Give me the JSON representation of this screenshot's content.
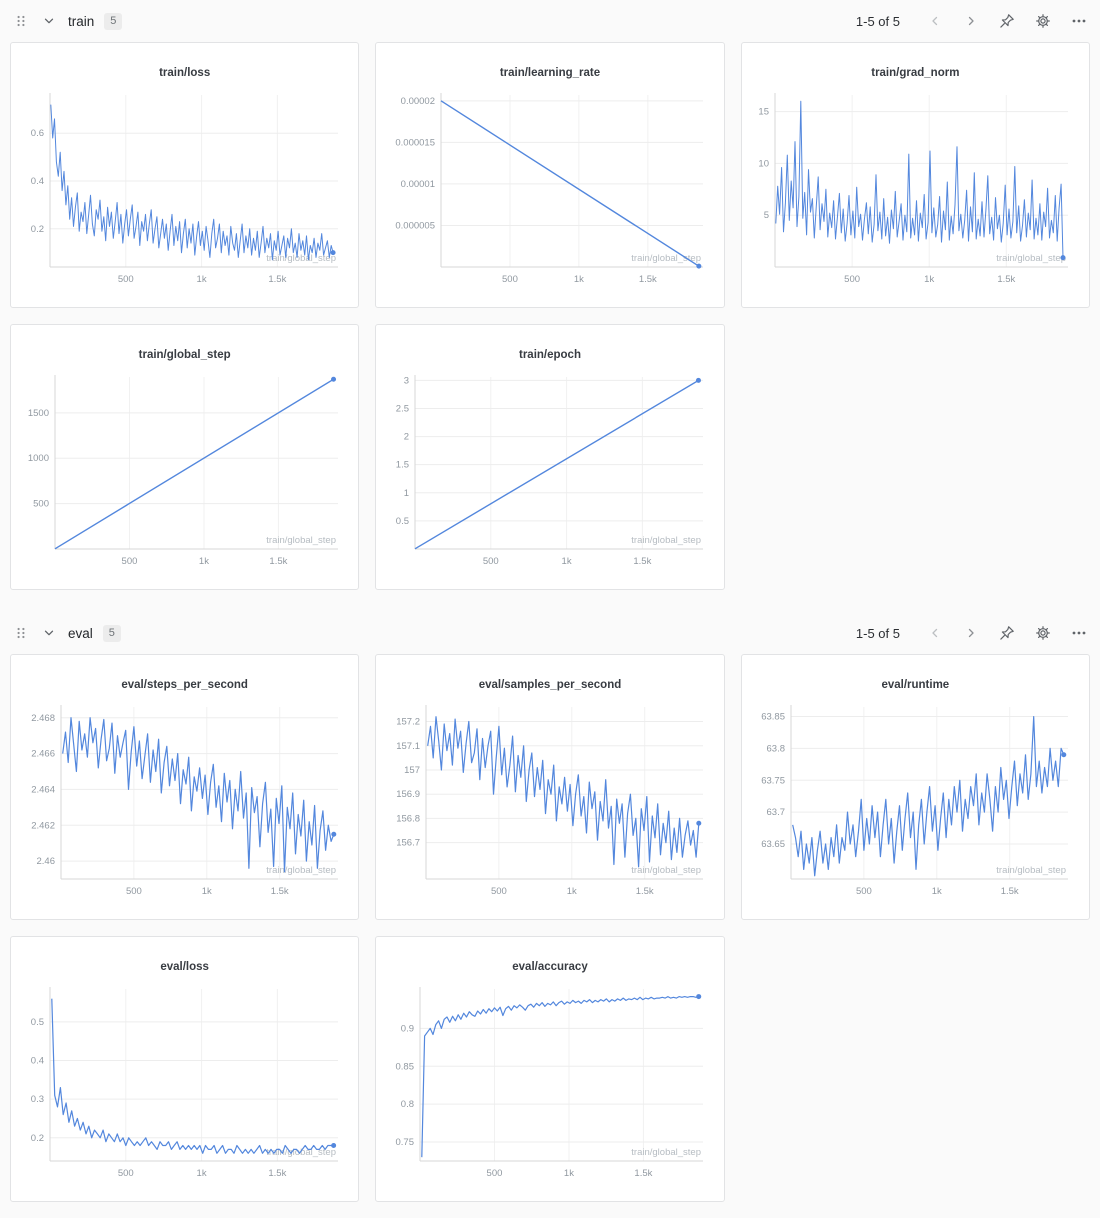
{
  "line_color": "#5387dd",
  "sections": [
    {
      "title": "train",
      "count": "5",
      "pagination": "1-5 of 5",
      "controls": [
        "drag-handle-icon",
        "chevron-down-icon",
        "chevron-left-icon",
        "chevron-right-icon",
        "pin-icon",
        "gear-icon",
        "ellipsis-icon"
      ]
    },
    {
      "title": "eval",
      "count": "5",
      "pagination": "1-5 of 5",
      "controls": [
        "drag-handle-icon",
        "chevron-down-icon",
        "chevron-left-icon",
        "chevron-right-icon",
        "pin-icon",
        "gear-icon",
        "ellipsis-icon"
      ]
    }
  ],
  "chart_data": [
    {
      "section": 0,
      "type": "line",
      "title": "train/loss",
      "xlabel": "train/global_step",
      "xlim": [
        0,
        1900
      ],
      "ylim": [
        0.04,
        0.76
      ],
      "x_ticks": [
        [
          500,
          "500"
        ],
        [
          1000,
          "1k"
        ],
        [
          1500,
          "1.5k"
        ]
      ],
      "y_ticks": [
        [
          0.2,
          "0.2"
        ],
        [
          0.4,
          "0.4"
        ],
        [
          0.6,
          "0.6"
        ]
      ],
      "x0": 5,
      "dx": 12.5,
      "stroke_width": 1,
      "y": [
        0.72,
        0.58,
        0.66,
        0.48,
        0.42,
        0.52,
        0.36,
        0.44,
        0.3,
        0.38,
        0.24,
        0.33,
        0.21,
        0.29,
        0.35,
        0.19,
        0.27,
        0.23,
        0.31,
        0.18,
        0.26,
        0.34,
        0.22,
        0.17,
        0.28,
        0.24,
        0.32,
        0.19,
        0.25,
        0.15,
        0.29,
        0.21,
        0.27,
        0.16,
        0.23,
        0.31,
        0.18,
        0.26,
        0.14,
        0.22,
        0.28,
        0.17,
        0.24,
        0.3,
        0.16,
        0.21,
        0.27,
        0.13,
        0.23,
        0.19,
        0.26,
        0.15,
        0.22,
        0.28,
        0.14,
        0.2,
        0.25,
        0.12,
        0.18,
        0.24,
        0.16,
        0.22,
        0.11,
        0.19,
        0.26,
        0.13,
        0.21,
        0.15,
        0.23,
        0.1,
        0.18,
        0.24,
        0.12,
        0.2,
        0.14,
        0.22,
        0.09,
        0.17,
        0.23,
        0.13,
        0.19,
        0.11,
        0.21,
        0.15,
        0.08,
        0.18,
        0.24,
        0.12,
        0.16,
        0.22,
        0.1,
        0.19,
        0.13,
        0.17,
        0.09,
        0.21,
        0.14,
        0.11,
        0.18,
        0.08,
        0.15,
        0.22,
        0.1,
        0.17,
        0.12,
        0.2,
        0.09,
        0.16,
        0.11,
        0.19,
        0.08,
        0.14,
        0.21,
        0.1,
        0.16,
        0.12,
        0.18,
        0.07,
        0.15,
        0.11,
        0.19,
        0.09,
        0.13,
        0.17,
        0.08,
        0.16,
        0.12,
        0.2,
        0.1,
        0.14,
        0.08,
        0.18,
        0.11,
        0.15,
        0.09,
        0.17,
        0.07,
        0.13,
        0.1,
        0.16,
        0.08,
        0.14,
        0.11,
        0.18,
        0.09,
        0.12,
        0.15,
        0.08,
        0.13,
        0.1
      ]
    },
    {
      "section": 0,
      "type": "line",
      "title": "train/learning_rate",
      "xlabel": "train/global_step",
      "xlim": [
        0,
        1900
      ],
      "ylim": [
        0,
        2.07e-05
      ],
      "x_ticks": [
        [
          500,
          "500"
        ],
        [
          1000,
          "1k"
        ],
        [
          1500,
          "1.5k"
        ]
      ],
      "y_ticks": [
        [
          5e-06,
          "0.000005"
        ],
        [
          1e-05,
          "0.00001"
        ],
        [
          1.5e-05,
          "0.000015"
        ],
        [
          2e-05,
          "0.00002"
        ]
      ],
      "stroke_width": 1.4,
      "points": [
        [
          0,
          2e-05
        ],
        [
          1870,
          1e-07
        ]
      ]
    },
    {
      "section": 0,
      "type": "line",
      "title": "train/grad_norm",
      "xlabel": "train/global_step",
      "xlim": [
        0,
        1900
      ],
      "ylim": [
        0,
        16.6
      ],
      "x_ticks": [
        [
          500,
          "500"
        ],
        [
          1000,
          "1k"
        ],
        [
          1500,
          "1.5k"
        ]
      ],
      "y_ticks": [
        [
          5,
          "5"
        ],
        [
          10,
          "10"
        ],
        [
          15,
          "15"
        ]
      ],
      "x0": 5,
      "dx": 12.5,
      "stroke_width": 1,
      "y": [
        4.2,
        7.8,
        5.1,
        9.6,
        3.4,
        6.2,
        10.8,
        4.5,
        8.3,
        5.7,
        12.1,
        3.9,
        6.8,
        16.0,
        4.7,
        7.2,
        3.1,
        9.4,
        5.3,
        6.6,
        2.8,
        5.9,
        8.7,
        3.6,
        6.1,
        4.4,
        7.5,
        2.9,
        5.2,
        3.8,
        6.4,
        2.7,
        4.9,
        7.1,
        3.3,
        5.6,
        2.5,
        4.2,
        6.9,
        3.1,
        5.4,
        2.8,
        7.7,
        3.9,
        5.1,
        2.6,
        4.6,
        6.2,
        3.2,
        5.8,
        2.4,
        4.1,
        8.9,
        3.5,
        5.3,
        2.7,
        6.6,
        3.0,
        4.8,
        2.3,
        5.5,
        3.7,
        7.3,
        2.9,
        4.4,
        6.1,
        2.6,
        5.0,
        3.4,
        10.9,
        2.8,
        4.7,
        3.1,
        6.4,
        2.5,
        5.2,
        3.8,
        7.0,
        2.7,
        4.3,
        11.2,
        3.3,
        5.7,
        2.9,
        4.1,
        6.8,
        2.4,
        5.4,
        3.6,
        8.2,
        2.6,
        4.9,
        3.2,
        6.0,
        11.6,
        3.5,
        5.1,
        2.8,
        4.5,
        7.4,
        2.5,
        5.8,
        3.4,
        9.1,
        2.7,
        4.6,
        3.0,
        6.3,
        2.9,
        5.5,
        8.8,
        3.2,
        4.8,
        2.6,
        6.7,
        3.7,
        5.0,
        2.4,
        4.2,
        7.9,
        3.1,
        5.6,
        2.8,
        4.4,
        9.7,
        3.3,
        5.9,
        2.5,
        4.0,
        6.5,
        2.9,
        5.2,
        3.6,
        8.4,
        2.7,
        4.7,
        3.1,
        6.1,
        2.6,
        5.3,
        3.9,
        7.6,
        2.8,
        4.5,
        3.3,
        6.9,
        2.5,
        5.7,
        8.0,
        0.9
      ]
    },
    {
      "section": 0,
      "type": "line",
      "title": "train/global_step",
      "xlabel": "train/global_step",
      "xlim": [
        0,
        1900
      ],
      "ylim": [
        0,
        1895
      ],
      "x_ticks": [
        [
          500,
          "500"
        ],
        [
          1000,
          "1k"
        ],
        [
          1500,
          "1.5k"
        ]
      ],
      "y_ticks": [
        [
          500,
          "500"
        ],
        [
          1000,
          "1000"
        ],
        [
          1500,
          "1500"
        ]
      ],
      "stroke_width": 1.4,
      "points": [
        [
          0,
          2
        ],
        [
          1870,
          1870
        ]
      ]
    },
    {
      "section": 0,
      "type": "line",
      "title": "train/epoch",
      "xlabel": "train/global_step",
      "xlim": [
        0,
        1900
      ],
      "ylim": [
        0,
        3.06
      ],
      "x_ticks": [
        [
          500,
          "500"
        ],
        [
          1000,
          "1k"
        ],
        [
          1500,
          "1.5k"
        ]
      ],
      "y_ticks": [
        [
          0.5,
          "0.5"
        ],
        [
          1,
          "1"
        ],
        [
          1.5,
          "1.5"
        ],
        [
          2,
          "2"
        ],
        [
          2.5,
          "2.5"
        ],
        [
          3,
          "3"
        ]
      ],
      "stroke_width": 1.4,
      "points": [
        [
          0,
          0.004
        ],
        [
          1870,
          3
        ]
      ]
    },
    {
      "section": 1,
      "type": "line",
      "title": "eval/steps_per_second",
      "xlabel": "train/global_step",
      "xlim": [
        0,
        1900
      ],
      "ylim": [
        2.459,
        2.4686
      ],
      "x_ticks": [
        [
          500,
          "500"
        ],
        [
          1000,
          "1k"
        ],
        [
          1500,
          "1.5k"
        ]
      ],
      "y_ticks": [
        [
          2.46,
          "2.46"
        ],
        [
          2.462,
          "2.462"
        ],
        [
          2.464,
          "2.464"
        ],
        [
          2.466,
          "2.466"
        ],
        [
          2.468,
          "2.468"
        ]
      ],
      "x0": 12,
      "dx": 18.78,
      "stroke_width": 1.2,
      "y": [
        2.466,
        2.4672,
        2.4655,
        2.468,
        2.4665,
        2.465,
        2.4678,
        2.4662,
        2.4671,
        2.4658,
        2.468,
        2.4666,
        2.4674,
        2.4652,
        2.4668,
        2.4679,
        2.4656,
        2.4663,
        2.4677,
        2.4649,
        2.467,
        2.4658,
        2.4666,
        2.4673,
        2.464,
        2.4661,
        2.4675,
        2.4653,
        2.4667,
        2.4646,
        2.4659,
        2.4671,
        2.4644,
        2.4662,
        2.465,
        2.4668,
        2.4638,
        2.4655,
        2.4664,
        2.4642,
        2.4657,
        2.4645,
        2.466,
        2.4632,
        2.4651,
        2.4643,
        2.4658,
        2.4628,
        2.4647,
        2.4639,
        2.4652,
        2.4635,
        2.4648,
        2.4626,
        2.4644,
        2.4654,
        2.463,
        2.4642,
        2.4622,
        2.4649,
        2.4633,
        2.4645,
        2.4618,
        2.464,
        2.4628,
        2.465,
        2.4624,
        2.4638,
        2.4596,
        2.4641,
        2.4627,
        2.4636,
        2.4608,
        2.4632,
        2.4644,
        2.4616,
        2.4629,
        2.4597,
        2.4635,
        2.4621,
        2.4642,
        2.4594,
        2.463,
        2.4618,
        2.4638,
        2.4604,
        2.4626,
        2.4614,
        2.4634,
        2.46,
        2.4622,
        2.4609,
        2.4631,
        2.4596,
        2.4617,
        2.4628,
        2.4606,
        2.462,
        2.4611,
        2.4615
      ]
    },
    {
      "section": 1,
      "type": "line",
      "title": "eval/samples_per_second",
      "xlabel": "train/global_step",
      "xlim": [
        0,
        1900
      ],
      "ylim": [
        156.55,
        157.26
      ],
      "x_ticks": [
        [
          500,
          "500"
        ],
        [
          1000,
          "1k"
        ],
        [
          1500,
          "1.5k"
        ]
      ],
      "y_ticks": [
        [
          156.7,
          "156.7"
        ],
        [
          156.8,
          "156.8"
        ],
        [
          156.9,
          "156.9"
        ],
        [
          157,
          "157"
        ],
        [
          157.1,
          "157.1"
        ],
        [
          157.2,
          "157.2"
        ]
      ],
      "x0": 12,
      "dx": 18.78,
      "stroke_width": 1.2,
      "y": [
        157.1,
        157.18,
        157.05,
        157.22,
        157.12,
        157.0,
        157.19,
        157.08,
        157.15,
        157.02,
        157.21,
        157.09,
        157.16,
        156.99,
        157.11,
        157.2,
        157.03,
        157.07,
        157.17,
        156.96,
        157.13,
        157.01,
        157.1,
        157.16,
        156.9,
        157.05,
        157.18,
        156.98,
        157.09,
        156.93,
        157.02,
        157.14,
        156.91,
        157.06,
        156.97,
        157.1,
        156.87,
        157.0,
        157.07,
        156.89,
        157.01,
        156.92,
        157.04,
        156.82,
        156.96,
        156.9,
        157.02,
        156.79,
        156.93,
        156.86,
        156.97,
        156.83,
        156.94,
        156.77,
        156.9,
        156.98,
        156.81,
        156.89,
        156.74,
        156.95,
        156.84,
        156.91,
        156.71,
        156.87,
        156.79,
        156.96,
        156.76,
        156.85,
        156.61,
        156.88,
        156.78,
        156.86,
        156.64,
        156.82,
        156.9,
        156.73,
        156.8,
        156.6,
        156.84,
        156.75,
        156.89,
        156.62,
        156.81,
        156.72,
        156.86,
        156.65,
        156.78,
        156.7,
        156.83,
        156.63,
        156.76,
        156.66,
        156.8,
        156.64,
        156.73,
        156.79,
        156.69,
        156.75,
        156.64,
        156.78
      ]
    },
    {
      "section": 1,
      "type": "line",
      "title": "eval/runtime",
      "xlabel": "train/global_step",
      "xlim": [
        0,
        1900
      ],
      "ylim": [
        63.595,
        63.865
      ],
      "x_ticks": [
        [
          500,
          "500"
        ],
        [
          1000,
          "1k"
        ],
        [
          1500,
          "1.5k"
        ]
      ],
      "y_ticks": [
        [
          63.65,
          "63.65"
        ],
        [
          63.7,
          "63.7"
        ],
        [
          63.75,
          "63.75"
        ],
        [
          63.8,
          "63.8"
        ],
        [
          63.85,
          "63.85"
        ]
      ],
      "x0": 12,
      "dx": 18.78,
      "stroke_width": 1.2,
      "y": [
        63.68,
        63.66,
        63.63,
        63.67,
        63.61,
        63.65,
        63.62,
        63.66,
        63.6,
        63.64,
        63.67,
        63.62,
        63.65,
        63.61,
        63.66,
        63.63,
        63.68,
        63.62,
        63.66,
        63.64,
        63.7,
        63.65,
        63.68,
        63.63,
        63.67,
        63.72,
        63.64,
        63.69,
        63.65,
        63.71,
        63.66,
        63.7,
        63.63,
        63.68,
        63.72,
        63.65,
        63.69,
        63.62,
        63.67,
        63.71,
        63.64,
        63.69,
        63.73,
        63.66,
        63.7,
        63.61,
        63.68,
        63.72,
        63.65,
        63.7,
        63.74,
        63.67,
        63.71,
        63.64,
        63.69,
        63.73,
        63.66,
        63.72,
        63.68,
        63.74,
        63.7,
        63.75,
        63.67,
        63.72,
        63.69,
        63.74,
        63.71,
        63.76,
        63.68,
        63.73,
        63.7,
        63.76,
        63.72,
        63.67,
        63.74,
        63.7,
        63.77,
        63.72,
        63.75,
        63.69,
        63.74,
        63.78,
        63.71,
        63.76,
        63.73,
        63.79,
        63.72,
        63.76,
        63.85,
        63.74,
        63.78,
        63.73,
        63.77,
        63.74,
        63.8,
        63.75,
        63.78,
        63.74,
        63.8,
        63.79
      ]
    },
    {
      "section": 1,
      "type": "line",
      "title": "eval/loss",
      "xlabel": "train/global_step",
      "xlim": [
        0,
        1900
      ],
      "ylim": [
        0.14,
        0.585
      ],
      "x_ticks": [
        [
          500,
          "500"
        ],
        [
          1000,
          "1k"
        ],
        [
          1500,
          "1.5k"
        ]
      ],
      "y_ticks": [
        [
          0.2,
          "0.2"
        ],
        [
          0.3,
          "0.3"
        ],
        [
          0.4,
          "0.4"
        ],
        [
          0.5,
          "0.5"
        ]
      ],
      "x0": 12,
      "dx": 18.78,
      "stroke_width": 1.2,
      "y": [
        0.56,
        0.31,
        0.28,
        0.33,
        0.26,
        0.29,
        0.24,
        0.27,
        0.23,
        0.25,
        0.22,
        0.24,
        0.21,
        0.23,
        0.2,
        0.22,
        0.21,
        0.2,
        0.22,
        0.19,
        0.21,
        0.2,
        0.19,
        0.21,
        0.19,
        0.2,
        0.18,
        0.2,
        0.19,
        0.18,
        0.19,
        0.18,
        0.19,
        0.2,
        0.18,
        0.19,
        0.18,
        0.17,
        0.19,
        0.18,
        0.18,
        0.19,
        0.17,
        0.18,
        0.19,
        0.17,
        0.18,
        0.17,
        0.18,
        0.17,
        0.18,
        0.17,
        0.18,
        0.16,
        0.18,
        0.17,
        0.17,
        0.18,
        0.16,
        0.17,
        0.18,
        0.16,
        0.17,
        0.17,
        0.16,
        0.18,
        0.17,
        0.16,
        0.17,
        0.16,
        0.17,
        0.16,
        0.17,
        0.18,
        0.16,
        0.17,
        0.16,
        0.17,
        0.16,
        0.17,
        0.17,
        0.16,
        0.18,
        0.17,
        0.16,
        0.17,
        0.17,
        0.16,
        0.17,
        0.18,
        0.17,
        0.17,
        0.18,
        0.17,
        0.17,
        0.18,
        0.17,
        0.18,
        0.18,
        0.18
      ]
    },
    {
      "section": 1,
      "type": "line",
      "title": "eval/accuracy",
      "xlabel": "train/global_step",
      "xlim": [
        0,
        1900
      ],
      "ylim": [
        0.725,
        0.952
      ],
      "x_ticks": [
        [
          500,
          "500"
        ],
        [
          1000,
          "1k"
        ],
        [
          1500,
          "1.5k"
        ]
      ],
      "y_ticks": [
        [
          0.75,
          "0.75"
        ],
        [
          0.8,
          "0.8"
        ],
        [
          0.85,
          "0.85"
        ],
        [
          0.9,
          "0.9"
        ]
      ],
      "x0": 12,
      "dx": 18.78,
      "stroke_width": 1.2,
      "y": [
        0.73,
        0.89,
        0.895,
        0.9,
        0.892,
        0.905,
        0.91,
        0.9,
        0.912,
        0.915,
        0.908,
        0.916,
        0.91,
        0.918,
        0.912,
        0.92,
        0.915,
        0.922,
        0.918,
        0.916,
        0.923,
        0.919,
        0.925,
        0.92,
        0.926,
        0.922,
        0.927,
        0.923,
        0.928,
        0.917,
        0.926,
        0.929,
        0.924,
        0.93,
        0.927,
        0.931,
        0.928,
        0.924,
        0.93,
        0.932,
        0.928,
        0.933,
        0.93,
        0.934,
        0.929,
        0.933,
        0.931,
        0.935,
        0.93,
        0.934,
        0.936,
        0.932,
        0.935,
        0.933,
        0.937,
        0.934,
        0.936,
        0.933,
        0.937,
        0.935,
        0.938,
        0.934,
        0.937,
        0.935,
        0.938,
        0.936,
        0.939,
        0.935,
        0.938,
        0.936,
        0.939,
        0.937,
        0.94,
        0.937,
        0.939,
        0.938,
        0.94,
        0.938,
        0.941,
        0.938,
        0.94,
        0.939,
        0.941,
        0.939,
        0.94,
        0.94,
        0.941,
        0.94,
        0.942,
        0.94,
        0.941,
        0.94,
        0.942,
        0.941,
        0.942,
        0.941,
        0.942,
        0.942,
        0.941,
        0.942
      ]
    }
  ]
}
